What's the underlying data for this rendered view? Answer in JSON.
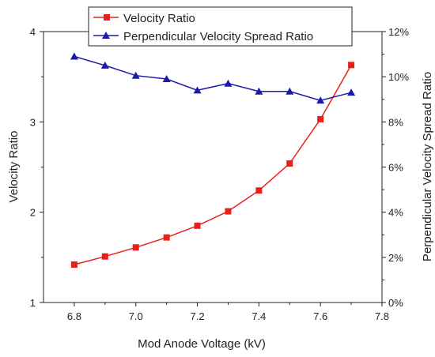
{
  "chart_data": {
    "type": "line",
    "title": "",
    "xlabel": "Mod Anode Voltage (kV)",
    "ylabel_left": "Velocity Ratio",
    "ylabel_right": "Perpendicular Velocity Spread Ratio",
    "xlim": [
      6.7,
      7.8
    ],
    "ylim_left": [
      1,
      4
    ],
    "ylim_right": [
      0,
      12
    ],
    "x_ticks": [
      "6.8",
      "7.0",
      "7.2",
      "7.4",
      "7.6",
      "7.8"
    ],
    "y_left_ticks": [
      "1",
      "2",
      "3",
      "4"
    ],
    "y_right_ticks": [
      "0%",
      "2%",
      "4%",
      "6%",
      "8%",
      "10%",
      "12%"
    ],
    "grid": false,
    "legend_position": "top",
    "x": [
      6.8,
      6.9,
      7.0,
      7.1,
      7.2,
      7.3,
      7.4,
      7.5,
      7.6,
      7.7
    ],
    "series": [
      {
        "name": "Velocity Ratio",
        "axis": "left",
        "color": "#e8201a",
        "marker": "square",
        "values": [
          1.42,
          1.51,
          1.61,
          1.72,
          1.85,
          2.01,
          2.24,
          2.54,
          3.03,
          3.63
        ]
      },
      {
        "name": "Perpendicular Velocity Spread Ratio",
        "axis": "right",
        "color": "#1b1ba8",
        "marker": "triangle",
        "values": [
          10.9,
          10.5,
          10.05,
          9.9,
          9.4,
          9.7,
          9.35,
          9.35,
          8.95,
          9.3
        ]
      }
    ]
  }
}
